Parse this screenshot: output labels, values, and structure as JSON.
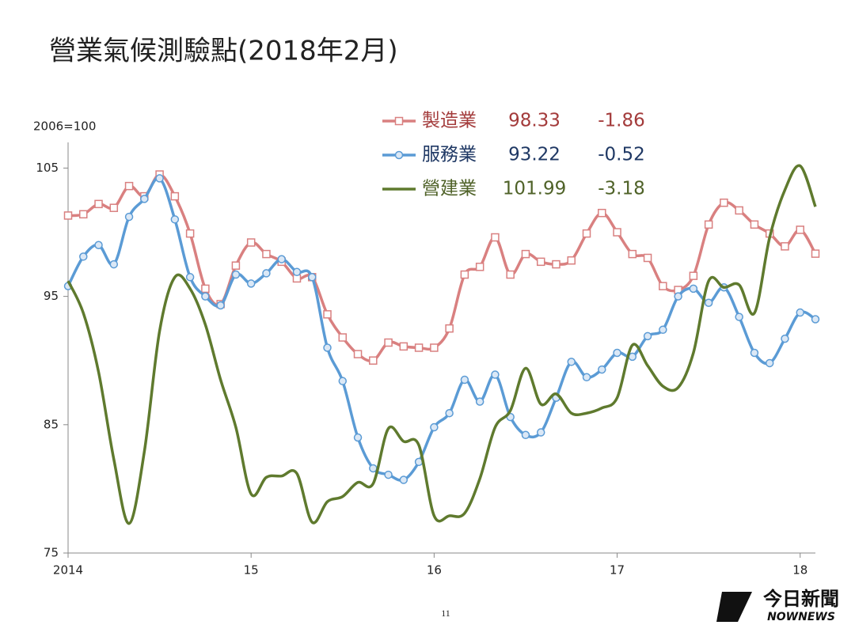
{
  "chart_data": {
    "type": "line",
    "title": "營業氣候測驗點(2018年2月)",
    "y_unit": "2006=100",
    "categories": [
      "2014",
      null,
      null,
      null,
      null,
      null,
      null,
      null,
      null,
      null,
      null,
      null,
      "15",
      null,
      null,
      null,
      null,
      null,
      null,
      null,
      null,
      null,
      null,
      null,
      "16",
      null,
      null,
      null,
      null,
      null,
      null,
      null,
      null,
      null,
      null,
      null,
      "17",
      null,
      null,
      null,
      null,
      null,
      null,
      null,
      null,
      null,
      null,
      null,
      "18",
      null
    ],
    "ylim": [
      75,
      107
    ],
    "yticks": [
      75,
      85,
      95,
      105
    ],
    "series": [
      {
        "name": "製造業",
        "color": "#d98080",
        "label_color": "#a33b3b",
        "marker": "square",
        "change": -1.86,
        "values": [
          101.3,
          101.4,
          102.2,
          101.9,
          103.6,
          102.8,
          104.5,
          102.8,
          99.9,
          95.6,
          94.4,
          97.4,
          99.2,
          98.3,
          97.7,
          96.4,
          96.5,
          93.6,
          91.8,
          90.5,
          90.0,
          91.4,
          91.1,
          91.0,
          91.0,
          92.5,
          96.7,
          97.3,
          99.6,
          96.7,
          98.3,
          97.7,
          97.5,
          97.8,
          99.9,
          101.5,
          100.0,
          98.3,
          98.0,
          95.8,
          95.5,
          96.6,
          100.6,
          102.3,
          101.7,
          100.6,
          99.9,
          98.9,
          100.19,
          98.33
        ]
      },
      {
        "name": "服務業",
        "color": "#5b9bd5",
        "label_color": "#1f3864",
        "marker": "circle",
        "change": -0.52,
        "values": [
          95.8,
          98.1,
          99.0,
          97.5,
          101.2,
          102.6,
          104.2,
          101.0,
          96.5,
          95.0,
          94.3,
          96.7,
          96.0,
          96.8,
          97.9,
          96.9,
          96.5,
          91.0,
          88.4,
          84.0,
          81.6,
          81.1,
          80.7,
          82.1,
          84.8,
          85.9,
          88.5,
          86.8,
          88.9,
          85.6,
          84.2,
          84.4,
          87.1,
          89.9,
          88.7,
          89.3,
          90.6,
          90.3,
          91.9,
          92.4,
          95.0,
          95.6,
          94.5,
          95.7,
          93.4,
          90.6,
          89.8,
          91.7,
          93.74,
          93.22
        ]
      },
      {
        "name": "營建業",
        "color": "#5f7a2e",
        "label_color": "#4f6228",
        "marker": "none",
        "change": -3.18,
        "values": [
          96.2,
          93.7,
          89.1,
          82.3,
          77.3,
          82.9,
          92.3,
          96.5,
          95.6,
          92.8,
          88.5,
          84.8,
          79.6,
          80.9,
          81.0,
          81.2,
          77.4,
          79.0,
          79.4,
          80.5,
          80.4,
          84.7,
          83.7,
          83.4,
          77.9,
          77.9,
          78.1,
          80.8,
          84.8,
          86.1,
          89.4,
          86.6,
          87.4,
          85.9,
          85.9,
          86.3,
          87.1,
          91.2,
          89.6,
          88.0,
          87.9,
          90.6,
          96.2,
          95.7,
          95.9,
          93.7,
          99.6,
          103.3,
          105.17,
          101.99
        ]
      }
    ]
  },
  "page_number": "11",
  "logo": {
    "name": "今日新聞",
    "brand": "NOWNEWS"
  }
}
